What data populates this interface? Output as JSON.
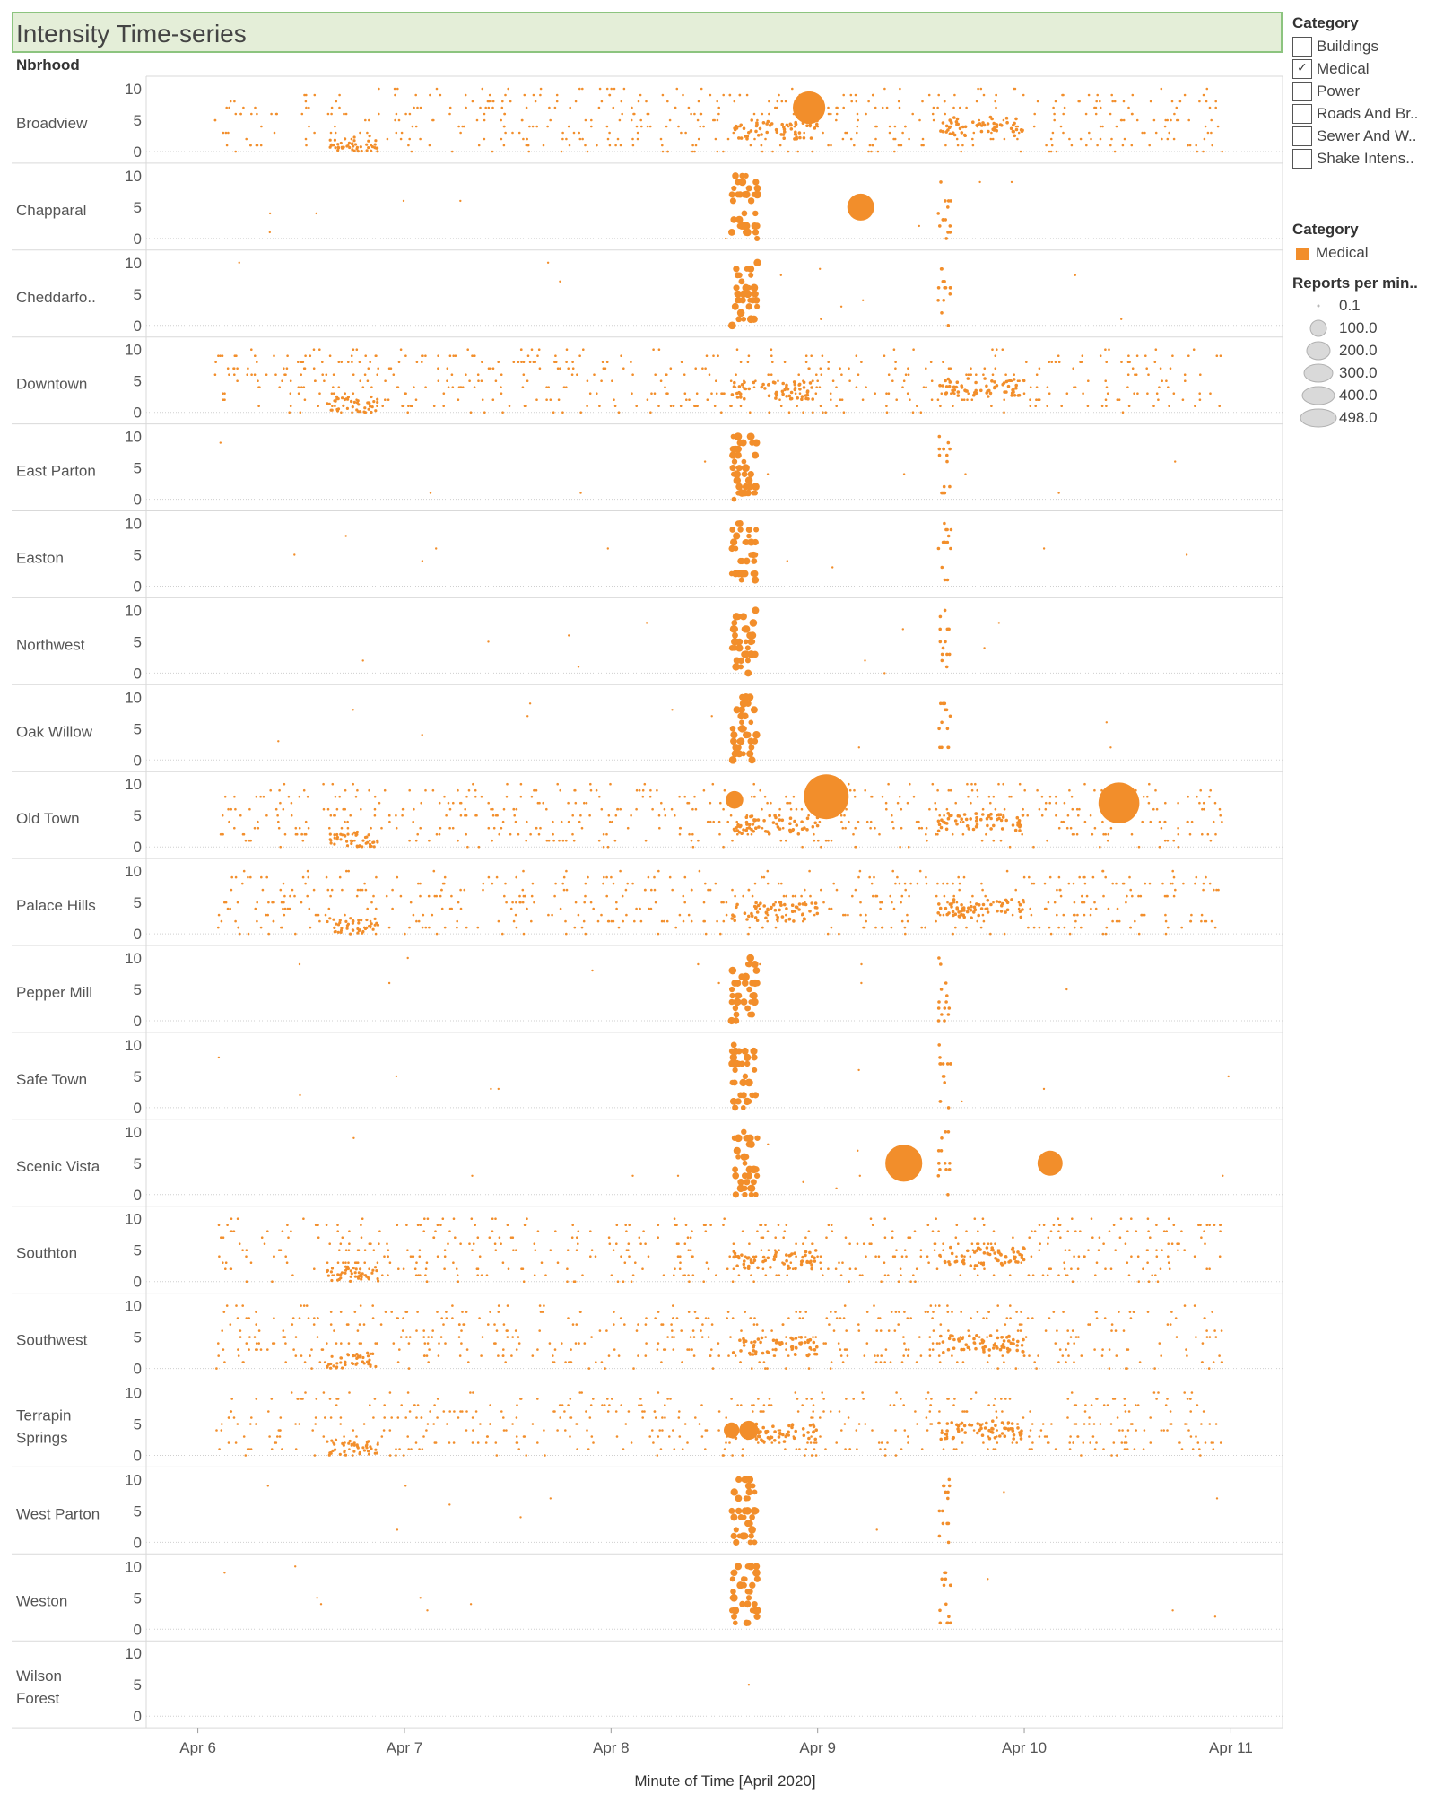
{
  "title": "Intensity Time-series",
  "row_header": "Nbrhood",
  "filter": {
    "title": "Category",
    "items": [
      {
        "label": "Buildings",
        "checked": false
      },
      {
        "label": "Medical",
        "checked": true
      },
      {
        "label": "Power",
        "checked": false
      },
      {
        "label": "Roads And Br..",
        "checked": false
      },
      {
        "label": "Sewer And W..",
        "checked": false
      },
      {
        "label": "Shake Intens..",
        "checked": false
      }
    ]
  },
  "color_legend": {
    "title": "Category",
    "items": [
      {
        "label": "Medical",
        "color": "#f28e2b"
      }
    ]
  },
  "size_legend": {
    "title": "Reports per min..",
    "items": [
      "0.1",
      "100.0",
      "200.0",
      "300.0",
      "400.0",
      "498.0"
    ]
  },
  "colors": {
    "mark": "#f28e2b",
    "grid": "#d9d9d9",
    "title_bg": "#e4eed8",
    "title_border": "#8cc47f"
  },
  "chart_data": {
    "type": "scatter",
    "x_label": "Minute of Time [April 2020]",
    "x_ticks": [
      "Apr 6",
      "Apr 7",
      "Apr 8",
      "Apr 9",
      "Apr 10",
      "Apr 11"
    ],
    "x_range": [
      "2020-04-05 18:00",
      "2020-04-11 06:00"
    ],
    "y_ticks": [
      "0",
      "5",
      "10"
    ],
    "ylim": [
      0,
      10
    ],
    "row_labels": [
      "Broadview",
      "Chapparal",
      "Cheddarfo..",
      "Downtown",
      "East Parton",
      "Easton",
      "Northwest",
      "Oak Willow",
      "Old Town",
      "Palace Hills",
      "Pepper Mill",
      "Safe Town",
      "Scenic Vista",
      "Southton",
      "Southwest",
      "Terrapin Springs",
      "West Parton",
      "Weston",
      "Wilson Forest"
    ],
    "notable_points": [
      {
        "row": "Broadview",
        "x": "2020-04-08 23:00",
        "y": 7,
        "reports_per_min": 180
      },
      {
        "row": "Chapparal",
        "x": "2020-04-09 05:00",
        "y": 5,
        "reports_per_min": 110
      },
      {
        "row": "Old Town",
        "x": "2020-04-08 14:20",
        "y": 7.5,
        "reports_per_min": 30
      },
      {
        "row": "Old Town",
        "x": "2020-04-09 01:00",
        "y": 8,
        "reports_per_min": 400
      },
      {
        "row": "Old Town",
        "x": "2020-04-10 11:00",
        "y": 7,
        "reports_per_min": 320
      },
      {
        "row": "Scenic Vista",
        "x": "2020-04-09 10:00",
        "y": 5,
        "reports_per_min": 250
      },
      {
        "row": "Scenic Vista",
        "x": "2020-04-10 03:00",
        "y": 5,
        "reports_per_min": 90
      },
      {
        "row": "Terrapin Springs",
        "x": "2020-04-08 14:00",
        "y": 4,
        "reports_per_min": 20
      },
      {
        "row": "Terrapin Springs",
        "x": "2020-04-08 16:00",
        "y": 4,
        "reports_per_min": 40
      }
    ],
    "density_profiles": {
      "continuous": [
        "Broadview",
        "Downtown",
        "Old Town",
        "Palace Hills",
        "Southton",
        "Southwest",
        "Terrapin Springs"
      ],
      "burst_only": [
        "Chapparal",
        "Cheddarfo..",
        "East Parton",
        "Easton",
        "Northwest",
        "Oak Willow",
        "Pepper Mill",
        "Safe Town",
        "Scenic Vista",
        "West Parton",
        "Weston",
        "Wilson Forest"
      ],
      "burst_windows": [
        [
          "2020-04-08 14:00",
          "2020-04-08 18:00"
        ],
        [
          "2020-04-09 14:00",
          "2020-04-09 18:00"
        ]
      ]
    }
  }
}
